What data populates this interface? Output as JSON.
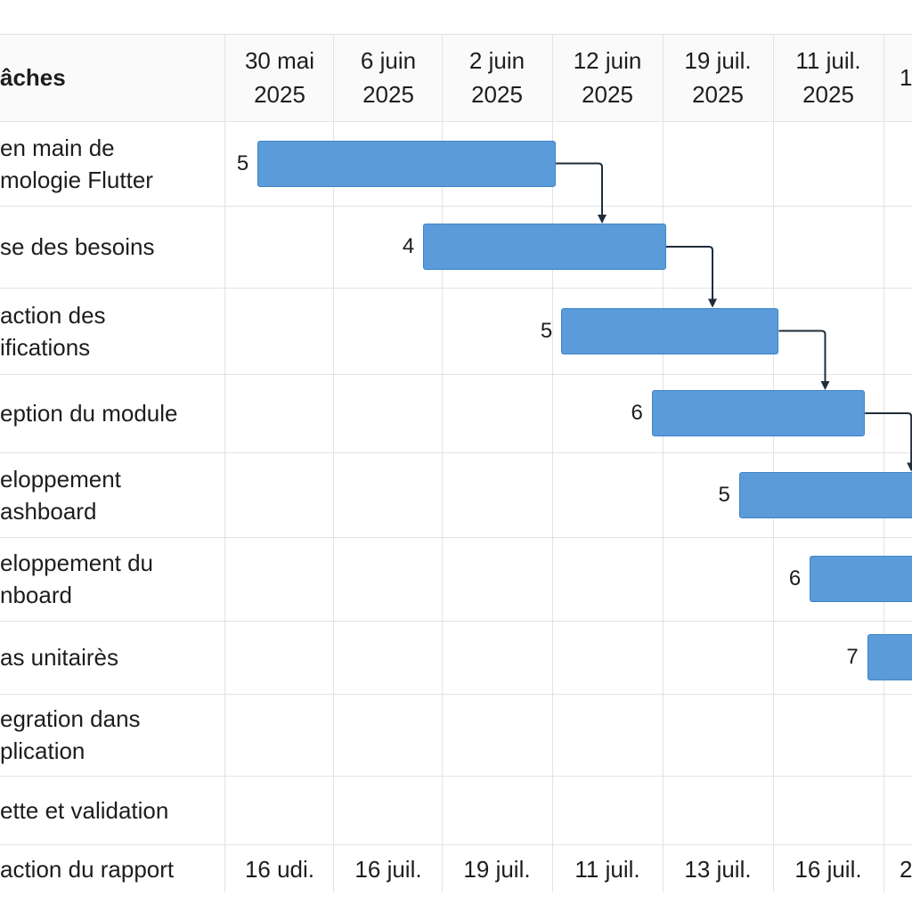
{
  "chart_data": {
    "type": "gantt",
    "header_label": "âches",
    "date_headers": [
      "30 mai\n2025",
      "6 juin\n2025",
      "2 juin\n2025",
      "12 juin\n2025",
      "19 juil.\n2025",
      "11 juil.\n2025",
      "1"
    ],
    "footer_labels": [
      "16 udi.",
      "16 juil.",
      "19 juil.",
      "11 juil.",
      "13 juil.",
      "16 juil.",
      "2"
    ],
    "tasks": [
      {
        "label": "en main de\nmologie Flutter",
        "value": "5",
        "start": 0.3,
        "end": 3.0,
        "depends_next": true
      },
      {
        "label": "se des besoins",
        "value": "4",
        "start": 1.8,
        "end": 4.0,
        "depends_next": true
      },
      {
        "label": "action des\nifications",
        "value": "5",
        "start": 3.05,
        "end": 5.02,
        "depends_next": true
      },
      {
        "label": "eption du module",
        "value": "6",
        "start": 3.87,
        "end": 5.8,
        "depends_next": true
      },
      {
        "label": "eloppement\nashboard",
        "value": "5",
        "start": 4.66,
        "end": 7.0,
        "depends_next": false
      },
      {
        "label": "eloppement du\nnboard",
        "value": "6",
        "start": 5.3,
        "end": 7.0,
        "depends_next": false
      },
      {
        "label": "as unitairès",
        "value": "7",
        "start": 5.82,
        "end": 7.0,
        "depends_next": false
      },
      {
        "label": "egration dans\nplication",
        "value": null,
        "start": null,
        "end": null,
        "depends_next": false
      },
      {
        "label": "ette et validation",
        "value": null,
        "start": null,
        "end": null,
        "depends_next": false
      },
      {
        "label": "action du rapport",
        "value": null,
        "start": null,
        "end": null,
        "depends_next": false
      }
    ],
    "colors": {
      "bar": "#5b9bd9",
      "bar_border": "#3f84c8",
      "grid": "#e3e3e3",
      "arrow": "#1f2d3a"
    },
    "grid": true
  }
}
